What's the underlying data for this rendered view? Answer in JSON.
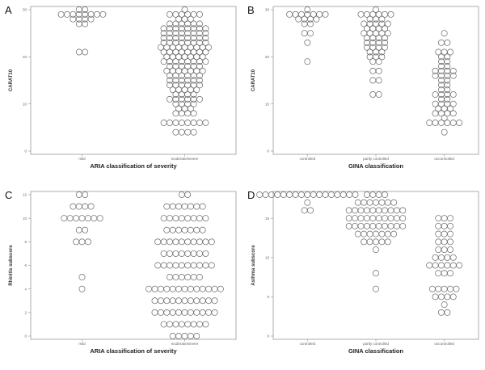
{
  "chart_data": [
    {
      "letter": "A",
      "type": "scatter",
      "subtype": "dot-plot",
      "xlabel": "ARIA classification of severity",
      "ylabel": "CARAT10",
      "categories": [
        "mild",
        "moderate/severe"
      ],
      "ylim": [
        0,
        30
      ],
      "yticks": [
        "0",
        "10",
        "20",
        "30"
      ],
      "groups": [
        {
          "category": "mild",
          "values": [
            30,
            30,
            29,
            29,
            29,
            29,
            29,
            29,
            29,
            29,
            28,
            28,
            28,
            28,
            27,
            27,
            21,
            21
          ]
        },
        {
          "category": "moderate/severe",
          "values": [
            30,
            29,
            29,
            29,
            29,
            29,
            29,
            28,
            28,
            28,
            27,
            27,
            27,
            27,
            27,
            27,
            26,
            26,
            26,
            26,
            26,
            26,
            26,
            26,
            25,
            25,
            25,
            25,
            25,
            25,
            25,
            25,
            24,
            24,
            24,
            24,
            24,
            24,
            24,
            24,
            23,
            23,
            23,
            23,
            23,
            23,
            23,
            23,
            22,
            22,
            22,
            22,
            22,
            22,
            22,
            22,
            22,
            21,
            21,
            21,
            21,
            21,
            21,
            21,
            21,
            20,
            20,
            20,
            20,
            20,
            20,
            20,
            19,
            19,
            19,
            19,
            19,
            19,
            19,
            19,
            18,
            18,
            18,
            18,
            18,
            18,
            17,
            17,
            17,
            17,
            17,
            17,
            17,
            16,
            16,
            16,
            16,
            16,
            16,
            15,
            15,
            15,
            15,
            15,
            15,
            14,
            14,
            14,
            14,
            14,
            14,
            13,
            13,
            13,
            13,
            13,
            12,
            12,
            12,
            12,
            11,
            11,
            11,
            11,
            11,
            11,
            10,
            10,
            10,
            10,
            9,
            9,
            9,
            8,
            8,
            8,
            8,
            6,
            6,
            6,
            6,
            6,
            6,
            6,
            6,
            4,
            4,
            4,
            4
          ]
        }
      ]
    },
    {
      "letter": "B",
      "type": "scatter",
      "subtype": "dot-plot",
      "xlabel": "GINA classification",
      "ylabel": "CARAT10",
      "categories": [
        "controlled",
        "partly controlled",
        "uncontrolled"
      ],
      "ylim": [
        0,
        30
      ],
      "yticks": [
        "0",
        "10",
        "20",
        "30"
      ],
      "groups": [
        {
          "category": "controlled",
          "values": [
            30,
            29,
            29,
            29,
            29,
            29,
            29,
            29,
            28,
            28,
            28,
            28,
            27,
            27,
            25,
            25,
            23,
            19
          ]
        },
        {
          "category": "partly controlled",
          "values": [
            30,
            29,
            29,
            29,
            29,
            29,
            29,
            28,
            28,
            28,
            27,
            27,
            27,
            27,
            27,
            26,
            26,
            26,
            26,
            25,
            25,
            25,
            25,
            25,
            24,
            24,
            24,
            24,
            23,
            23,
            23,
            23,
            22,
            22,
            22,
            22,
            21,
            21,
            21,
            20,
            20,
            20,
            19,
            19,
            17,
            17,
            15,
            15,
            12,
            12
          ]
        },
        {
          "category": "uncontrolled",
          "values": [
            25,
            23,
            23,
            21,
            21,
            21,
            20,
            20,
            19,
            19,
            18,
            18,
            17,
            17,
            17,
            17,
            16,
            16,
            16,
            16,
            15,
            15,
            14,
            14,
            13,
            13,
            12,
            12,
            12,
            12,
            11,
            11,
            10,
            10,
            10,
            10,
            9,
            9,
            9,
            8,
            8,
            8,
            8,
            7,
            6,
            6,
            6,
            6,
            6,
            6,
            4
          ]
        }
      ]
    },
    {
      "letter": "C",
      "type": "scatter",
      "subtype": "dot-plot",
      "xlabel": "ARIA classification of severity",
      "ylabel": "Rhinitis subscore",
      "categories": [
        "mild",
        "moderate/severe"
      ],
      "ylim": [
        0,
        12
      ],
      "yticks": [
        "0",
        "2",
        "4",
        "6",
        "8",
        "10",
        "12"
      ],
      "groups": [
        {
          "category": "mild",
          "values": [
            12,
            12,
            11,
            11,
            11,
            11,
            10,
            10,
            10,
            10,
            10,
            10,
            10,
            9,
            9,
            8,
            8,
            8,
            5,
            4
          ]
        },
        {
          "category": "moderate/severe",
          "values": [
            12,
            12,
            11,
            11,
            11,
            11,
            11,
            11,
            11,
            10,
            10,
            10,
            10,
            10,
            10,
            10,
            10,
            9,
            9,
            9,
            9,
            9,
            9,
            9,
            8,
            8,
            8,
            8,
            8,
            8,
            8,
            8,
            8,
            8,
            7,
            7,
            7,
            7,
            7,
            7,
            7,
            7,
            6,
            6,
            6,
            6,
            6,
            6,
            6,
            6,
            6,
            6,
            5,
            5,
            5,
            5,
            5,
            5,
            4,
            4,
            4,
            4,
            4,
            4,
            4,
            4,
            4,
            4,
            4,
            4,
            4,
            3,
            3,
            3,
            3,
            3,
            3,
            3,
            3,
            3,
            3,
            3,
            2,
            2,
            2,
            2,
            2,
            2,
            2,
            2,
            2,
            2,
            2,
            1,
            1,
            1,
            1,
            1,
            1,
            1,
            1,
            0,
            0,
            0,
            0,
            0
          ]
        }
      ]
    },
    {
      "letter": "D",
      "type": "scatter",
      "subtype": "dot-plot",
      "xlabel": "GINA classification",
      "ylabel": "Asthma subscore",
      "categories": [
        "controlled",
        "partly controlled",
        "uncontrolled"
      ],
      "ylim": [
        0,
        18
      ],
      "yticks": [
        "0",
        "5",
        "10",
        "15"
      ],
      "groups": [
        {
          "category": "controlled",
          "values": [
            18,
            18,
            18,
            18,
            18,
            18,
            18,
            18,
            18,
            18,
            18,
            18,
            18,
            18,
            18,
            18,
            18,
            17,
            16,
            16
          ]
        },
        {
          "category": "partly controlled",
          "values": [
            18,
            18,
            18,
            18,
            17,
            17,
            17,
            17,
            17,
            17,
            17,
            16,
            16,
            16,
            16,
            16,
            16,
            16,
            16,
            16,
            16,
            15,
            15,
            15,
            15,
            15,
            15,
            15,
            15,
            15,
            15,
            14,
            14,
            14,
            14,
            14,
            14,
            14,
            14,
            14,
            14,
            13,
            13,
            13,
            13,
            13,
            13,
            13,
            12,
            12,
            12,
            12,
            12,
            11,
            8,
            6
          ]
        },
        {
          "category": "uncontrolled",
          "values": [
            15,
            15,
            15,
            14,
            14,
            14,
            13,
            13,
            13,
            12,
            12,
            12,
            11,
            11,
            11,
            10,
            10,
            10,
            10,
            9,
            9,
            9,
            9,
            9,
            9,
            8,
            8,
            8,
            6,
            6,
            6,
            6,
            6,
            5,
            5,
            5,
            5,
            4,
            3,
            3
          ]
        }
      ]
    }
  ]
}
